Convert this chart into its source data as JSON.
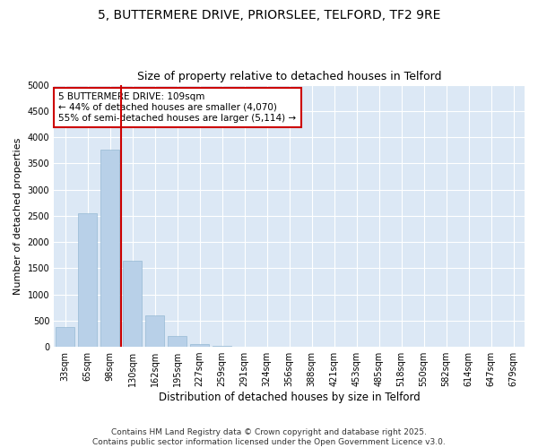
{
  "title1": "5, BUTTERMERE DRIVE, PRIORSLEE, TELFORD, TF2 9RE",
  "title2": "Size of property relative to detached houses in Telford",
  "xlabel": "Distribution of detached houses by size in Telford",
  "ylabel": "Number of detached properties",
  "categories": [
    "33sqm",
    "65sqm",
    "98sqm",
    "130sqm",
    "162sqm",
    "195sqm",
    "227sqm",
    "259sqm",
    "291sqm",
    "324sqm",
    "356sqm",
    "388sqm",
    "421sqm",
    "453sqm",
    "485sqm",
    "518sqm",
    "550sqm",
    "582sqm",
    "614sqm",
    "647sqm",
    "679sqm"
  ],
  "values": [
    370,
    2540,
    3760,
    1640,
    600,
    200,
    60,
    20,
    8,
    3,
    1,
    0,
    0,
    0,
    0,
    0,
    0,
    0,
    0,
    0,
    0
  ],
  "bar_color": "#b8d0e8",
  "vline_color": "#cc0000",
  "annotation_text": "5 BUTTERMERE DRIVE: 109sqm\n← 44% of detached houses are smaller (4,070)\n55% of semi-detached houses are larger (5,114) →",
  "ylim": [
    0,
    5000
  ],
  "yticks": [
    0,
    500,
    1000,
    1500,
    2000,
    2500,
    3000,
    3500,
    4000,
    4500,
    5000
  ],
  "fig_background": "#ffffff",
  "plot_background": "#dce8f5",
  "grid_color": "#ffffff",
  "footer": "Contains HM Land Registry data © Crown copyright and database right 2025.\nContains public sector information licensed under the Open Government Licence v3.0.",
  "title1_fontsize": 10,
  "title2_fontsize": 9,
  "xlabel_fontsize": 8.5,
  "ylabel_fontsize": 8,
  "tick_fontsize": 7,
  "footer_fontsize": 6.5,
  "annotation_fontsize": 7.5
}
